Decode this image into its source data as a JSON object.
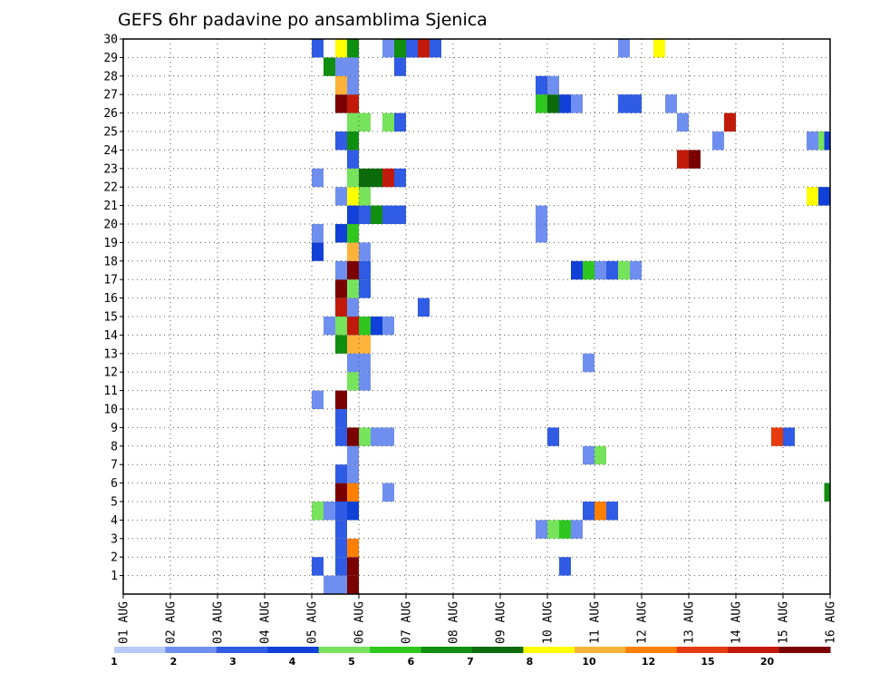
{
  "chart_data": {
    "type": "heatmap",
    "title": "GEFS 6hr padavine po ansamblima Sjenica",
    "x_ticks": [
      "01 AUG",
      "02 AUG",
      "03 AUG",
      "04 AUG",
      "05 AUG",
      "06 AUG",
      "07 AUG",
      "08 AUG",
      "09 AUG",
      "10 AUG",
      "11 AUG",
      "12 AUG",
      "13 AUG",
      "14 AUG",
      "15 AUG",
      "16 AUG"
    ],
    "y_ticks": [
      "1",
      "2",
      "3",
      "4",
      "5",
      "6",
      "7",
      "8",
      "9",
      "10",
      "11",
      "12",
      "13",
      "14",
      "15",
      "16",
      "17",
      "18",
      "19",
      "20",
      "21",
      "22",
      "23",
      "24",
      "25",
      "26",
      "27",
      "28",
      "29",
      "30"
    ],
    "x_range": [
      "01 AUG 00Z",
      "16 AUG 00Z"
    ],
    "y_range": [
      0,
      30
    ],
    "time_step_hours": 6,
    "grid": "dotted",
    "colorbar": {
      "labels": [
        "1",
        "2",
        "3",
        "4",
        "5",
        "6",
        "7",
        "8",
        "10",
        "12",
        "15",
        "20"
      ],
      "colors": [
        "#b7c9f7",
        "#6f8ff0",
        "#2f5be5",
        "#1040d8",
        "#77e35c",
        "#2fc71f",
        "#0f8e0f",
        "#0b6b0b",
        "#ffff00",
        "#ffb23a",
        "#ff7f00",
        "#e63b0f",
        "#c11a0a",
        "#7a0000"
      ]
    },
    "cells": [
      {
        "m": 0,
        "d": "05 AUG 06Z",
        "c": 1
      },
      {
        "m": 0,
        "d": "05 AUG 12Z",
        "c": 1
      },
      {
        "m": 0,
        "d": "05 AUG 18Z",
        "c": 13
      },
      {
        "m": 1,
        "d": "05 AUG 00Z",
        "c": 2
      },
      {
        "m": 1,
        "d": "05 AUG 12Z",
        "c": 2
      },
      {
        "m": 1,
        "d": "05 AUG 18Z",
        "c": 13
      },
      {
        "m": 1,
        "d": "10 AUG 06Z",
        "c": 2
      },
      {
        "m": 2,
        "d": "05 AUG 12Z",
        "c": 2
      },
      {
        "m": 2,
        "d": "05 AUG 18Z",
        "c": 10
      },
      {
        "m": 3,
        "d": "05 AUG 12Z",
        "c": 2
      },
      {
        "m": 3,
        "d": "09 AUG 18Z",
        "c": 1
      },
      {
        "m": 3,
        "d": "10 AUG 00Z",
        "c": 4
      },
      {
        "m": 3,
        "d": "10 AUG 06Z",
        "c": 5
      },
      {
        "m": 3,
        "d": "10 AUG 12Z",
        "c": 1
      },
      {
        "m": 4,
        "d": "05 AUG 00Z",
        "c": 4
      },
      {
        "m": 4,
        "d": "05 AUG 06Z",
        "c": 1
      },
      {
        "m": 4,
        "d": "05 AUG 12Z",
        "c": 2
      },
      {
        "m": 4,
        "d": "05 AUG 18Z",
        "c": 3
      },
      {
        "m": 4,
        "d": "10 AUG 18Z",
        "c": 2
      },
      {
        "m": 4,
        "d": "11 AUG 00Z",
        "c": 10
      },
      {
        "m": 4,
        "d": "11 AUG 06Z",
        "c": 2
      },
      {
        "m": 5,
        "d": "05 AUG 12Z",
        "c": 13
      },
      {
        "m": 5,
        "d": "05 AUG 18Z",
        "c": 10
      },
      {
        "m": 5,
        "d": "06 AUG 12Z",
        "c": 1
      },
      {
        "m": 5,
        "d": "16 AUG 00Z",
        "c": 6
      },
      {
        "m": 6,
        "d": "05 AUG 12Z",
        "c": 2
      },
      {
        "m": 6,
        "d": "05 AUG 18Z",
        "c": 1
      },
      {
        "m": 7,
        "d": "05 AUG 18Z",
        "c": 1
      },
      {
        "m": 7,
        "d": "10 AUG 18Z",
        "c": 1
      },
      {
        "m": 7,
        "d": "11 AUG 00Z",
        "c": 4
      },
      {
        "m": 8,
        "d": "05 AUG 12Z",
        "c": 2
      },
      {
        "m": 8,
        "d": "05 AUG 18Z",
        "c": 13
      },
      {
        "m": 8,
        "d": "06 AUG 00Z",
        "c": 4
      },
      {
        "m": 8,
        "d": "06 AUG 06Z",
        "c": 1
      },
      {
        "m": 8,
        "d": "06 AUG 12Z",
        "c": 1
      },
      {
        "m": 8,
        "d": "10 AUG 00Z",
        "c": 2
      },
      {
        "m": 8,
        "d": "14 AUG 18Z",
        "c": 11
      },
      {
        "m": 8,
        "d": "15 AUG 00Z",
        "c": 2
      },
      {
        "m": 9,
        "d": "05 AUG 12Z",
        "c": 2
      },
      {
        "m": 10,
        "d": "05 AUG 00Z",
        "c": 1
      },
      {
        "m": 10,
        "d": "05 AUG 12Z",
        "c": 13
      },
      {
        "m": 11,
        "d": "05 AUG 18Z",
        "c": 4
      },
      {
        "m": 11,
        "d": "06 AUG 00Z",
        "c": 1
      },
      {
        "m": 12,
        "d": "05 AUG 18Z",
        "c": 1
      },
      {
        "m": 12,
        "d": "06 AUG 00Z",
        "c": 1
      },
      {
        "m": 12,
        "d": "10 AUG 18Z",
        "c": 1
      },
      {
        "m": 13,
        "d": "05 AUG 12Z",
        "c": 6
      },
      {
        "m": 13,
        "d": "05 AUG 18Z",
        "c": 9
      },
      {
        "m": 13,
        "d": "06 AUG 00Z",
        "c": 9
      },
      {
        "m": 14,
        "d": "05 AUG 06Z",
        "c": 1
      },
      {
        "m": 14,
        "d": "05 AUG 12Z",
        "c": 4
      },
      {
        "m": 14,
        "d": "05 AUG 18Z",
        "c": 12
      },
      {
        "m": 14,
        "d": "06 AUG 00Z",
        "c": 5
      },
      {
        "m": 14,
        "d": "06 AUG 06Z",
        "c": 3
      },
      {
        "m": 14,
        "d": "06 AUG 12Z",
        "c": 1
      },
      {
        "m": 15,
        "d": "05 AUG 12Z",
        "c": 12
      },
      {
        "m": 15,
        "d": "05 AUG 18Z",
        "c": 1
      },
      {
        "m": 15,
        "d": "07 AUG 06Z",
        "c": 2
      },
      {
        "m": 16,
        "d": "05 AUG 12Z",
        "c": 13
      },
      {
        "m": 16,
        "d": "05 AUG 18Z",
        "c": 4
      },
      {
        "m": 16,
        "d": "06 AUG 00Z",
        "c": 2
      },
      {
        "m": 17,
        "d": "05 AUG 12Z",
        "c": 1
      },
      {
        "m": 17,
        "d": "05 AUG 18Z",
        "c": 13
      },
      {
        "m": 17,
        "d": "06 AUG 00Z",
        "c": 2
      },
      {
        "m": 17,
        "d": "10 AUG 12Z",
        "c": 3
      },
      {
        "m": 17,
        "d": "10 AUG 18Z",
        "c": 5
      },
      {
        "m": 17,
        "d": "11 AUG 00Z",
        "c": 1
      },
      {
        "m": 17,
        "d": "11 AUG 06Z",
        "c": 2
      },
      {
        "m": 17,
        "d": "11 AUG 12Z",
        "c": 4
      },
      {
        "m": 17,
        "d": "11 AUG 18Z",
        "c": 1
      },
      {
        "m": 18,
        "d": "05 AUG 00Z",
        "c": 3
      },
      {
        "m": 18,
        "d": "05 AUG 18Z",
        "c": 9
      },
      {
        "m": 18,
        "d": "06 AUG 00Z",
        "c": 1
      },
      {
        "m": 19,
        "d": "05 AUG 12Z",
        "c": 3
      },
      {
        "m": 19,
        "d": "05 AUG 18Z",
        "c": 5
      },
      {
        "m": 19,
        "d": "05 AUG 00Z",
        "c": 1
      },
      {
        "m": 19,
        "d": "09 AUG 18Z",
        "c": 1
      },
      {
        "m": 20,
        "d": "05 AUG 18Z",
        "c": 3
      },
      {
        "m": 20,
        "d": "06 AUG 00Z",
        "c": 2
      },
      {
        "m": 20,
        "d": "06 AUG 06Z",
        "c": 6
      },
      {
        "m": 20,
        "d": "06 AUG 12Z",
        "c": 2
      },
      {
        "m": 20,
        "d": "06 AUG 18Z",
        "c": 2
      },
      {
        "m": 20,
        "d": "09 AUG 18Z",
        "c": 1
      },
      {
        "m": 21,
        "d": "05 AUG 12Z",
        "c": 1
      },
      {
        "m": 21,
        "d": "05 AUG 18Z",
        "c": 8
      },
      {
        "m": 21,
        "d": "06 AUG 00Z",
        "c": 4
      },
      {
        "m": 21,
        "d": "15 AUG 12Z",
        "c": 8
      },
      {
        "m": 21,
        "d": "15 AUG 18Z",
        "c": 3
      },
      {
        "m": 22,
        "d": "05 AUG 00Z",
        "c": 1
      },
      {
        "m": 22,
        "d": "05 AUG 18Z",
        "c": 4
      },
      {
        "m": 22,
        "d": "06 AUG 00Z",
        "c": 7
      },
      {
        "m": 22,
        "d": "06 AUG 06Z",
        "c": 7
      },
      {
        "m": 22,
        "d": "06 AUG 12Z",
        "c": 12
      },
      {
        "m": 22,
        "d": "06 AUG 18Z",
        "c": 2
      },
      {
        "m": 23,
        "d": "05 AUG 18Z",
        "c": 2
      },
      {
        "m": 23,
        "d": "12 AUG 18Z",
        "c": 12
      },
      {
        "m": 23,
        "d": "13 AUG 00Z",
        "c": 13
      },
      {
        "m": 24,
        "d": "05 AUG 12Z",
        "c": 2
      },
      {
        "m": 24,
        "d": "05 AUG 18Z",
        "c": 6
      },
      {
        "m": 24,
        "d": "13 AUG 12Z",
        "c": 1
      },
      {
        "m": 24,
        "d": "15 AUG 12Z",
        "c": 1
      },
      {
        "m": 24,
        "d": "15 AUG 18Z",
        "c": 4
      },
      {
        "m": 24,
        "d": "16 AUG 00Z",
        "c": 3
      },
      {
        "m": 25,
        "d": "05 AUG 18Z",
        "c": 4
      },
      {
        "m": 25,
        "d": "06 AUG 00Z",
        "c": 4
      },
      {
        "m": 25,
        "d": "06 AUG 12Z",
        "c": 4
      },
      {
        "m": 25,
        "d": "06 AUG 18Z",
        "c": 2
      },
      {
        "m": 25,
        "d": "12 AUG 18Z",
        "c": 1
      },
      {
        "m": 25,
        "d": "13 AUG 18Z",
        "c": 12
      },
      {
        "m": 26,
        "d": "05 AUG 12Z",
        "c": 13
      },
      {
        "m": 26,
        "d": "05 AUG 18Z",
        "c": 12
      },
      {
        "m": 26,
        "d": "09 AUG 18Z",
        "c": 5
      },
      {
        "m": 26,
        "d": "10 AUG 00Z",
        "c": 7
      },
      {
        "m": 26,
        "d": "10 AUG 06Z",
        "c": 3
      },
      {
        "m": 26,
        "d": "10 AUG 12Z",
        "c": 1
      },
      {
        "m": 26,
        "d": "11 AUG 12Z",
        "c": 2
      },
      {
        "m": 26,
        "d": "11 AUG 18Z",
        "c": 2
      },
      {
        "m": 26,
        "d": "12 AUG 12Z",
        "c": 1
      },
      {
        "m": 27,
        "d": "05 AUG 12Z",
        "c": 9
      },
      {
        "m": 27,
        "d": "05 AUG 18Z",
        "c": 1
      },
      {
        "m": 27,
        "d": "09 AUG 18Z",
        "c": 2
      },
      {
        "m": 27,
        "d": "10 AUG 00Z",
        "c": 1
      },
      {
        "m": 28,
        "d": "05 AUG 06Z",
        "c": 6
      },
      {
        "m": 28,
        "d": "05 AUG 12Z",
        "c": 1
      },
      {
        "m": 28,
        "d": "05 AUG 18Z",
        "c": 1
      },
      {
        "m": 28,
        "d": "06 AUG 18Z",
        "c": 2
      },
      {
        "m": 29,
        "d": "05 AUG 00Z",
        "c": 2
      },
      {
        "m": 29,
        "d": "05 AUG 12Z",
        "c": 8
      },
      {
        "m": 29,
        "d": "05 AUG 18Z",
        "c": 6
      },
      {
        "m": 29,
        "d": "06 AUG 12Z",
        "c": 1
      },
      {
        "m": 29,
        "d": "06 AUG 18Z",
        "c": 6
      },
      {
        "m": 29,
        "d": "07 AUG 00Z",
        "c": 2
      },
      {
        "m": 29,
        "d": "07 AUG 06Z",
        "c": 12
      },
      {
        "m": 29,
        "d": "07 AUG 12Z",
        "c": 2
      },
      {
        "m": 29,
        "d": "11 AUG 12Z",
        "c": 1
      },
      {
        "m": 29,
        "d": "12 AUG 06Z",
        "c": 8
      }
    ]
  }
}
